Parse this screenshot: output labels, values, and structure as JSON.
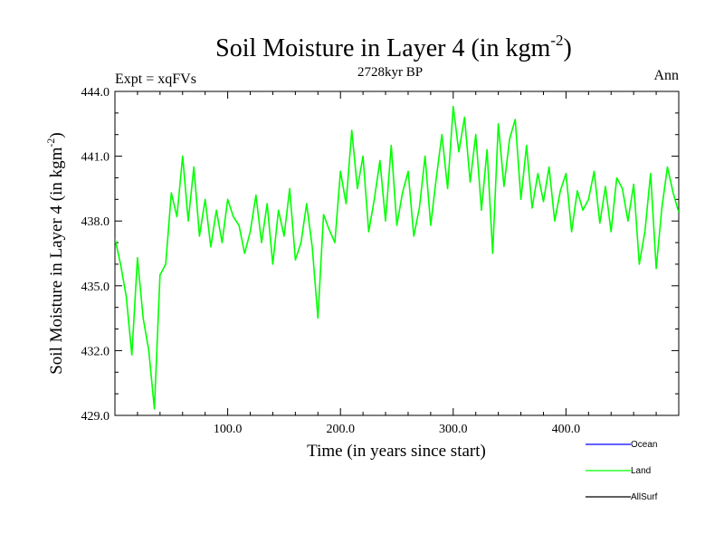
{
  "chart_data": {
    "type": "line",
    "title_main": "Soil Moisture in Layer 4 (in kgm",
    "title_exp": "-2",
    "title_close": ")",
    "subtitle": "2728kyr BP",
    "left_label": "Expt = xqFVs",
    "right_label": "Ann",
    "xlabel": "Time (in years since start)",
    "ylabel_main": "Soil Moisture in Layer 4 (in kgm",
    "ylabel_exp": "-2",
    "ylabel_close": ")",
    "xlim": [
      0,
      500
    ],
    "ylim": [
      429.0,
      444.0
    ],
    "x_ticks": [
      100,
      200,
      300,
      400
    ],
    "x_tick_labels": [
      "100.0",
      "200.0",
      "300.0",
      "400.0"
    ],
    "y_ticks": [
      429,
      432,
      435,
      438,
      441,
      444
    ],
    "y_tick_labels": [
      "429.0",
      "432.0",
      "435.0",
      "438.0",
      "441.0",
      "444.0"
    ],
    "legend": [
      {
        "name": "Ocean",
        "color": "#0000ff"
      },
      {
        "name": "Land",
        "color": "#00ff00"
      },
      {
        "name": "AllSurf",
        "color": "#000000"
      }
    ],
    "series": [
      {
        "name": "Land",
        "color": "#00ff00",
        "x": [
          0,
          5,
          10,
          15,
          20,
          25,
          30,
          35,
          40,
          45,
          50,
          55,
          60,
          65,
          70,
          75,
          80,
          85,
          90,
          95,
          100,
          105,
          110,
          115,
          120,
          125,
          130,
          135,
          140,
          145,
          150,
          155,
          160,
          165,
          170,
          175,
          180,
          185,
          190,
          195,
          200,
          205,
          210,
          215,
          220,
          225,
          230,
          235,
          240,
          245,
          250,
          255,
          260,
          265,
          270,
          275,
          280,
          285,
          290,
          295,
          300,
          305,
          310,
          315,
          320,
          325,
          330,
          335,
          340,
          345,
          350,
          355,
          360,
          365,
          370,
          375,
          380,
          385,
          390,
          395,
          400,
          405,
          410,
          415,
          420,
          425,
          430,
          435,
          440,
          445,
          450,
          455,
          460,
          465,
          470,
          475,
          480,
          485,
          490,
          495,
          500
        ],
        "values": [
          437.2,
          436.0,
          434.5,
          431.8,
          436.3,
          433.5,
          432.0,
          429.3,
          435.5,
          436.0,
          439.3,
          438.2,
          441.0,
          438.0,
          440.5,
          437.3,
          439.0,
          436.8,
          438.5,
          437.0,
          439.0,
          438.2,
          437.8,
          436.5,
          437.5,
          439.2,
          437.0,
          438.8,
          436.0,
          438.5,
          437.3,
          439.5,
          436.2,
          437.0,
          438.8,
          436.8,
          433.5,
          438.3,
          437.6,
          437.0,
          440.3,
          438.8,
          442.2,
          439.5,
          441.0,
          437.5,
          439.0,
          440.8,
          438.0,
          441.5,
          437.8,
          439.3,
          440.3,
          437.3,
          438.6,
          441.0,
          437.8,
          440.0,
          442.0,
          439.5,
          443.3,
          441.2,
          442.8,
          439.8,
          442.0,
          438.5,
          441.3,
          436.5,
          442.5,
          439.6,
          441.8,
          442.7,
          439.0,
          441.5,
          438.6,
          440.2,
          438.9,
          440.5,
          438.0,
          439.4,
          440.2,
          437.5,
          439.4,
          438.5,
          439.0,
          440.3,
          437.9,
          439.6,
          437.5,
          440.0,
          439.5,
          438.0,
          439.7,
          436.0,
          437.5,
          440.2,
          435.8,
          438.6,
          440.5,
          439.3,
          438.4
        ]
      }
    ]
  }
}
